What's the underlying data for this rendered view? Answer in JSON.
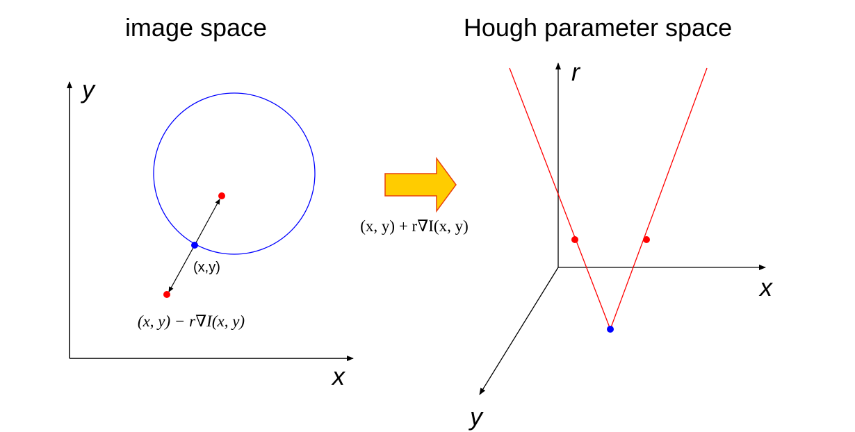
{
  "left_panel": {
    "title": "image space",
    "x_axis_label": "x",
    "y_axis_label": "y",
    "point_label": "(x,y)",
    "formula": "(x, y) − r∇I(x, y)"
  },
  "right_panel": {
    "title": "Hough parameter space",
    "r_axis_label": "r",
    "x_axis_label": "x",
    "y_axis_label": "y"
  },
  "transform_formula": "(x, y) + r∇I(x, y)",
  "colors": {
    "circle": "#0000ff",
    "edge_point": "#0000ff",
    "center_point": "#ff0000",
    "cone": "#ff0000",
    "arrow_fill": "#ffcc00",
    "arrow_stroke": "#e8400c",
    "axes": "#000000"
  }
}
